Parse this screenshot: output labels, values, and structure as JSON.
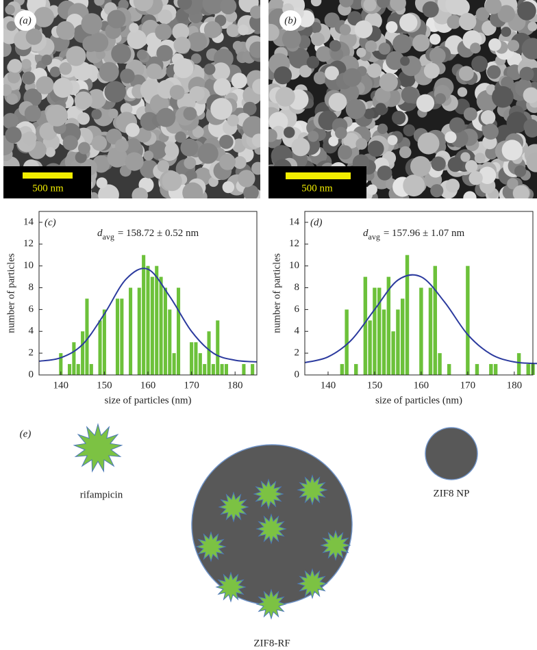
{
  "panels": {
    "a": {
      "label": "(a)",
      "scale_bar": "500 nm"
    },
    "b": {
      "label": "(b)",
      "scale_bar": "500 nm"
    }
  },
  "chart_data": [
    {
      "type": "bar",
      "panel_label": "(c)",
      "annotation": {
        "symbol": "d",
        "subscript": "avg",
        "text": "= 158.72 ± 0.52 nm"
      },
      "x_label": "size of particles (nm)",
      "y_label": "number of particles",
      "x": [
        140,
        142,
        143,
        144,
        145,
        146,
        147,
        149,
        150,
        153,
        154,
        156,
        158,
        159,
        160,
        161,
        162,
        163,
        164,
        165,
        166,
        167,
        170,
        171,
        172,
        173,
        174,
        175,
        176,
        177,
        178,
        182,
        184
      ],
      "values": [
        2,
        1,
        3,
        1,
        4,
        7,
        1,
        5,
        6,
        7,
        7,
        8,
        8,
        11,
        10,
        9,
        10,
        9,
        8,
        6,
        2,
        8,
        3,
        3,
        2,
        1,
        4,
        1,
        5,
        1,
        1,
        1,
        1
      ],
      "color": "#6cc13a",
      "fit": {
        "x": [
          135,
          140,
          145,
          150,
          155,
          160,
          165,
          170,
          175,
          180,
          185
        ],
        "values": [
          1.26,
          1.58,
          2.8,
          5.6,
          8.8,
          9.7,
          7.2,
          4.0,
          2.0,
          1.35,
          1.2
        ],
        "color": "#2b3a9e"
      },
      "xlim": [
        135,
        185
      ],
      "ylim": [
        0,
        15
      ],
      "xticks": [
        140,
        150,
        160,
        170,
        180
      ],
      "yticks": [
        0,
        2,
        4,
        6,
        8,
        10,
        12,
        14
      ]
    },
    {
      "type": "bar",
      "panel_label": "(d)",
      "annotation": {
        "symbol": "d",
        "subscript": "avg",
        "text": "= 157.96 ± 1.07 nm"
      },
      "x_label": "size of particles (nm)",
      "y_label": "number of particles",
      "x": [
        143,
        144,
        146,
        148,
        149,
        150,
        151,
        152,
        153,
        154,
        155,
        156,
        157,
        160,
        162,
        163,
        164,
        166,
        170,
        172,
        175,
        176,
        181,
        183,
        184
      ],
      "values": [
        1,
        6,
        1,
        9,
        5,
        8,
        8,
        6,
        9,
        4,
        6,
        7,
        11,
        8,
        8,
        10,
        2,
        1,
        10,
        1,
        1,
        1,
        2,
        1,
        1
      ],
      "color": "#6cc13a",
      "fit": {
        "x": [
          135,
          140,
          145,
          150,
          155,
          160,
          165,
          170,
          175,
          180,
          185
        ],
        "values": [
          1.13,
          1.66,
          3.2,
          6.0,
          8.7,
          9.0,
          6.7,
          3.7,
          1.9,
          1.19,
          1.05
        ],
        "color": "#2b3a9e"
      },
      "xlim": [
        135,
        184
      ],
      "ylim": [
        0,
        15
      ],
      "xticks": [
        140,
        150,
        160,
        170,
        180
      ],
      "yticks": [
        0,
        2,
        4,
        6,
        8,
        10,
        12,
        14
      ]
    }
  ],
  "diagram": {
    "label": "(e)",
    "drug_label": "rifampicin",
    "nanoparticle_label": "ZIF8 NP",
    "composite_label": "ZIF8-RF"
  }
}
